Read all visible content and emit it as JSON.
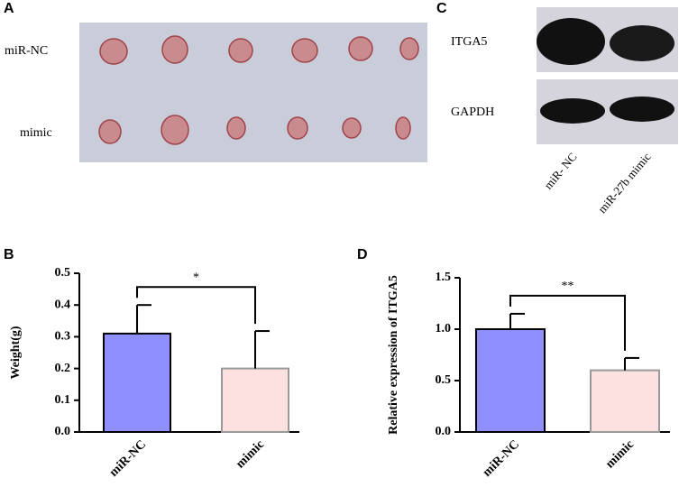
{
  "panel_a": {
    "label": "A",
    "rows": [
      "miR-NC",
      "mimic"
    ]
  },
  "panel_c": {
    "label": "C",
    "rows": [
      "ITGA5",
      "GAPDH"
    ],
    "lanes": [
      "miR- NC",
      "miR-27b mimic"
    ]
  },
  "chart_data": [
    {
      "type": "bar",
      "panel": "B",
      "ylabel": "Weight(g)",
      "categories": [
        "miR-NC",
        "mimic"
      ],
      "values": [
        0.31,
        0.2
      ],
      "errors": [
        0.09,
        0.118
      ],
      "colors": [
        "#8f8fff",
        "#fde0e0"
      ],
      "edge_colors": [
        "#000000",
        "#999999"
      ],
      "annotation": "*",
      "ylim": [
        0,
        0.5
      ],
      "yticks": [
        {
          "value": 0,
          "label": "0.0"
        },
        0.1,
        0.2,
        0.3,
        0.4,
        0.5
      ]
    },
    {
      "type": "bar",
      "panel": "D",
      "ylabel": "Relative expression of ITGA5",
      "categories": [
        "miR-NC",
        "mimic"
      ],
      "values": [
        1.0,
        0.6
      ],
      "errors": [
        0.15,
        0.12
      ],
      "colors": [
        "#8f8fff",
        "#fde0e0"
      ],
      "edge_colors": [
        "#000000",
        "#999999"
      ],
      "annotation": "**",
      "ylim": [
        0,
        1.5
      ],
      "yticks": [
        {
          "value": 0,
          "label": "0.0"
        },
        0.5,
        {
          "value": 1,
          "label": "1.0"
        },
        1.5
      ]
    }
  ]
}
